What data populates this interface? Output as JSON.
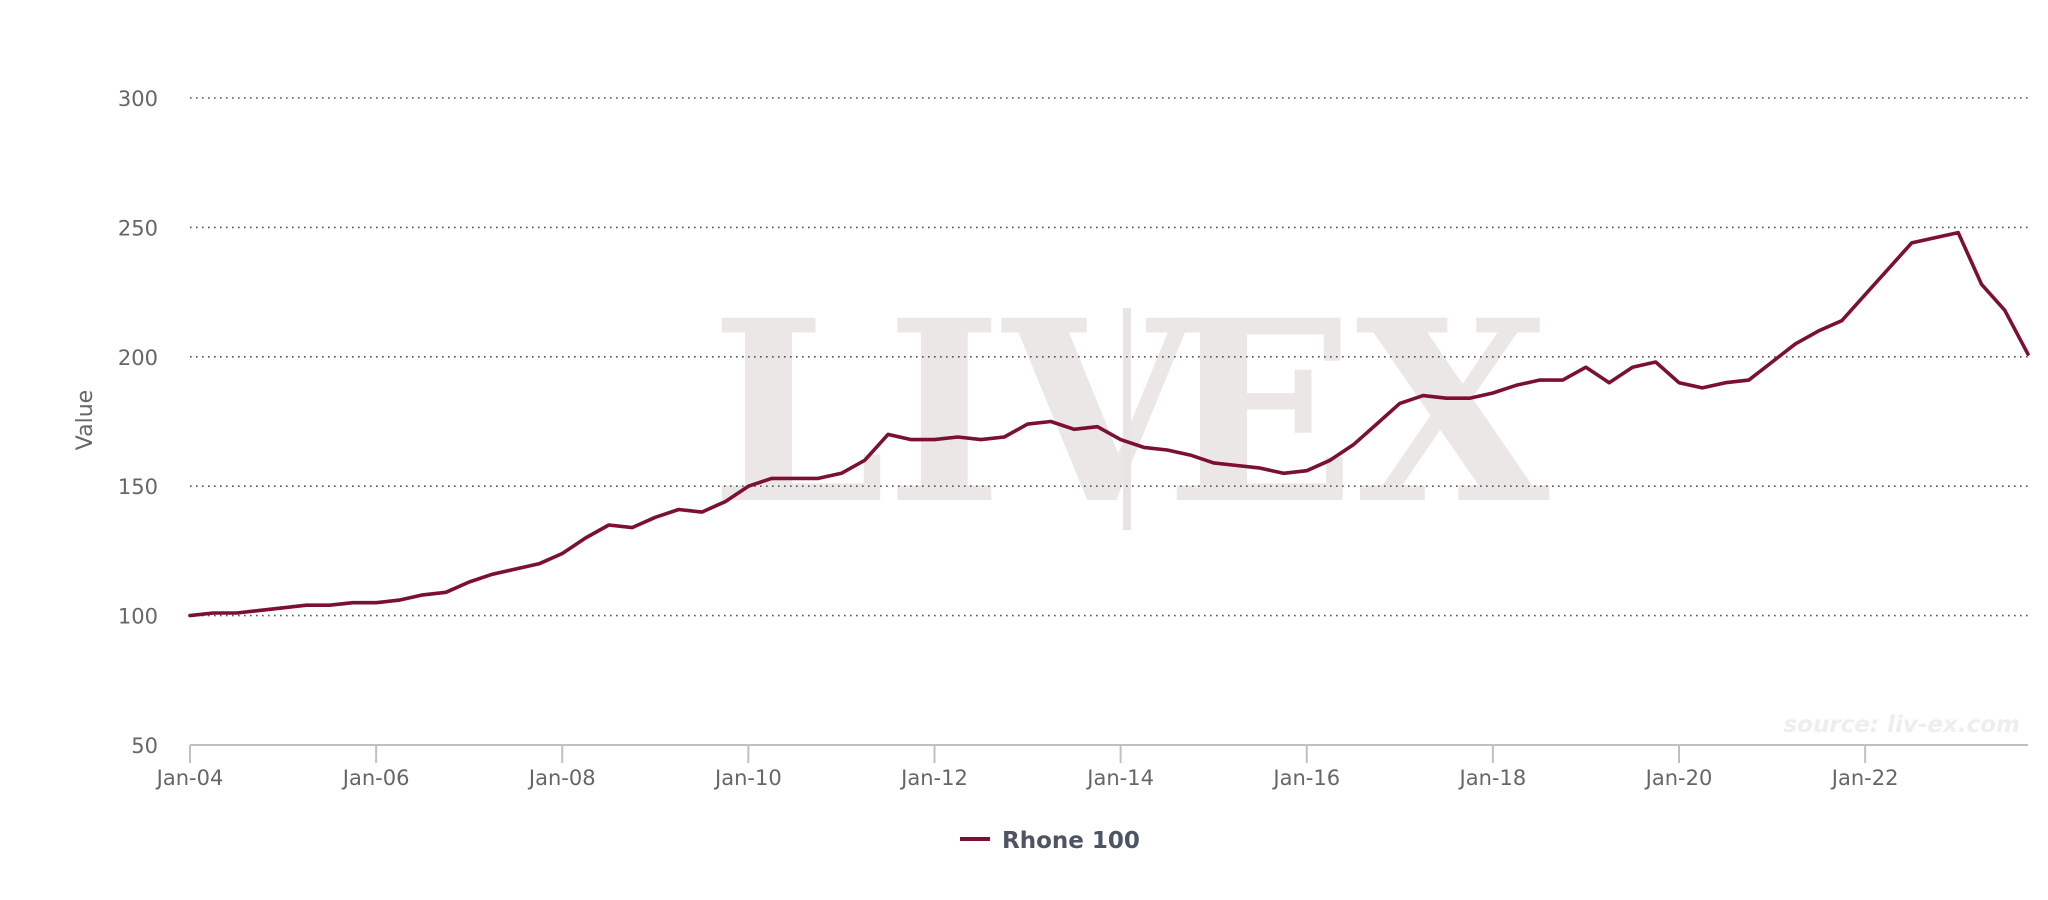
{
  "chart_data": {
    "type": "line",
    "title": "",
    "xlabel": "",
    "ylabel": "Value",
    "ylim": [
      50,
      300
    ],
    "yticks": [
      50,
      100,
      150,
      200,
      250,
      300
    ],
    "xlim": [
      "2004-01",
      "2023-10"
    ],
    "xticks": [
      "Jan-04",
      "Jan-06",
      "Jan-08",
      "Jan-10",
      "Jan-12",
      "Jan-14",
      "Jan-16",
      "Jan-18",
      "Jan-20",
      "Jan-22"
    ],
    "grid": "horizontal dotted",
    "legend": "bottom-center",
    "watermark": "LIV|EX",
    "credit": "source: liv-ex.com",
    "line_color": "#7b1034",
    "series": [
      {
        "name": "Rhone 100",
        "x": [
          "2004-01",
          "2004-04",
          "2004-07",
          "2004-10",
          "2005-01",
          "2005-04",
          "2005-07",
          "2005-10",
          "2006-01",
          "2006-04",
          "2006-07",
          "2006-10",
          "2007-01",
          "2007-04",
          "2007-07",
          "2007-10",
          "2008-01",
          "2008-04",
          "2008-07",
          "2008-10",
          "2009-01",
          "2009-04",
          "2009-07",
          "2009-10",
          "2010-01",
          "2010-04",
          "2010-07",
          "2010-10",
          "2011-01",
          "2011-04",
          "2011-07",
          "2011-10",
          "2012-01",
          "2012-04",
          "2012-07",
          "2012-10",
          "2013-01",
          "2013-04",
          "2013-07",
          "2013-10",
          "2014-01",
          "2014-04",
          "2014-07",
          "2014-10",
          "2015-01",
          "2015-04",
          "2015-07",
          "2015-10",
          "2016-01",
          "2016-04",
          "2016-07",
          "2016-10",
          "2017-01",
          "2017-04",
          "2017-07",
          "2017-10",
          "2018-01",
          "2018-04",
          "2018-07",
          "2018-10",
          "2019-01",
          "2019-04",
          "2019-07",
          "2019-10",
          "2020-01",
          "2020-04",
          "2020-07",
          "2020-10",
          "2021-01",
          "2021-04",
          "2021-07",
          "2021-10",
          "2022-01",
          "2022-04",
          "2022-07",
          "2022-10",
          "2023-01",
          "2023-04",
          "2023-07",
          "2023-10"
        ],
        "values": [
          100,
          101,
          101,
          102,
          103,
          104,
          104,
          105,
          105,
          106,
          108,
          109,
          113,
          116,
          118,
          120,
          124,
          130,
          135,
          134,
          138,
          141,
          140,
          144,
          150,
          153,
          153,
          153,
          155,
          160,
          170,
          168,
          168,
          169,
          168,
          169,
          174,
          175,
          172,
          173,
          168,
          165,
          164,
          162,
          159,
          158,
          157,
          155,
          156,
          160,
          166,
          174,
          182,
          185,
          184,
          184,
          186,
          189,
          191,
          191,
          196,
          190,
          196,
          198,
          190,
          188,
          190,
          191,
          198,
          205,
          210,
          214,
          224,
          234,
          244,
          246,
          248,
          228,
          218,
          201
        ]
      }
    ]
  }
}
